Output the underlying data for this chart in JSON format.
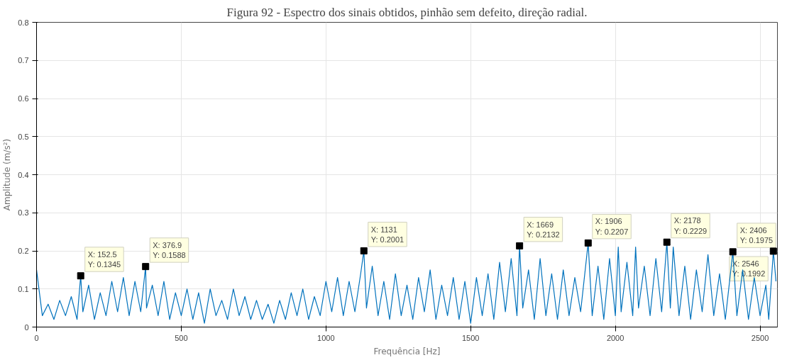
{
  "chart_data": {
    "type": "line",
    "title": "Figura 92 - Espectro dos sinais obtidos, pinhão sem defeito, direção radial.",
    "xlabel": "Frequência [Hz]",
    "ylabel": "Amplitude (m/s²)",
    "xlim": [
      0,
      2560
    ],
    "ylim": [
      0,
      0.8
    ],
    "xticks": [
      0,
      500,
      1000,
      1500,
      2000,
      2500
    ],
    "yticks": [
      0,
      0.1,
      0.2,
      0.3,
      0.4,
      0.5,
      0.6,
      0.7,
      0.8
    ],
    "grid": true,
    "marker": "none",
    "line_style": "solid",
    "series": [
      {
        "color": "#0072bd",
        "x": [
          0,
          20,
          40,
          60,
          80,
          100,
          120,
          140,
          152.5,
          160,
          180,
          200,
          220,
          240,
          260,
          280,
          300,
          320,
          340,
          360,
          376.9,
          380,
          400,
          420,
          440,
          460,
          480,
          500,
          520,
          540,
          560,
          580,
          600,
          620,
          640,
          660,
          680,
          700,
          720,
          740,
          760,
          780,
          800,
          820,
          840,
          860,
          880,
          900,
          920,
          940,
          960,
          980,
          1000,
          1020,
          1040,
          1060,
          1080,
          1100,
          1120,
          1131,
          1140,
          1160,
          1180,
          1200,
          1220,
          1240,
          1260,
          1280,
          1300,
          1320,
          1340,
          1360,
          1380,
          1400,
          1420,
          1440,
          1460,
          1480,
          1500,
          1520,
          1540,
          1560,
          1580,
          1600,
          1620,
          1640,
          1660,
          1669,
          1680,
          1700,
          1720,
          1740,
          1760,
          1780,
          1800,
          1820,
          1840,
          1860,
          1880,
          1906,
          1920,
          1940,
          1960,
          1980,
          2000,
          2010,
          2020,
          2040,
          2060,
          2070,
          2080,
          2100,
          2120,
          2140,
          2160,
          2178,
          2190,
          2200,
          2220,
          2240,
          2260,
          2280,
          2300,
          2320,
          2340,
          2360,
          2380,
          2406,
          2420,
          2440,
          2460,
          2480,
          2500,
          2520,
          2530,
          2546,
          2555
        ],
        "values": [
          0.15,
          0.03,
          0.06,
          0.02,
          0.07,
          0.03,
          0.08,
          0.02,
          0.1345,
          0.04,
          0.11,
          0.02,
          0.09,
          0.03,
          0.12,
          0.04,
          0.13,
          0.03,
          0.12,
          0.04,
          0.1588,
          0.05,
          0.11,
          0.03,
          0.12,
          0.02,
          0.09,
          0.03,
          0.1,
          0.02,
          0.09,
          0.01,
          0.1,
          0.03,
          0.07,
          0.02,
          0.1,
          0.03,
          0.08,
          0.02,
          0.07,
          0.02,
          0.06,
          0.01,
          0.07,
          0.02,
          0.09,
          0.03,
          0.1,
          0.02,
          0.08,
          0.03,
          0.12,
          0.04,
          0.13,
          0.03,
          0.12,
          0.04,
          0.14,
          0.2001,
          0.05,
          0.16,
          0.03,
          0.12,
          0.02,
          0.14,
          0.03,
          0.11,
          0.02,
          0.13,
          0.04,
          0.15,
          0.02,
          0.11,
          0.03,
          0.13,
          0.02,
          0.12,
          0.01,
          0.13,
          0.03,
          0.14,
          0.02,
          0.17,
          0.04,
          0.18,
          0.03,
          0.2132,
          0.05,
          0.15,
          0.02,
          0.18,
          0.03,
          0.14,
          0.02,
          0.15,
          0.03,
          0.13,
          0.04,
          0.2207,
          0.03,
          0.16,
          0.02,
          0.18,
          0.03,
          0.21,
          0.04,
          0.17,
          0.03,
          0.21,
          0.05,
          0.16,
          0.03,
          0.18,
          0.04,
          0.2229,
          0.05,
          0.21,
          0.03,
          0.16,
          0.02,
          0.15,
          0.04,
          0.19,
          0.03,
          0.14,
          0.02,
          0.1975,
          0.03,
          0.15,
          0.02,
          0.13,
          0.03,
          0.11,
          0.02,
          0.1992,
          0.12
        ]
      }
    ],
    "annotations": [
      {
        "text": "X: 152.5\nY: 0.1345",
        "x": 152.5,
        "y": 0.1345
      },
      {
        "text": "X: 376.9\nY: 0.1588",
        "x": 376.9,
        "y": 0.1588
      },
      {
        "text": "X: 1131\nY: 0.2001",
        "x": 1131,
        "y": 0.2001
      },
      {
        "text": "X: 1669\nY: 0.2132",
        "x": 1669,
        "y": 0.2132
      },
      {
        "text": "X: 1906\nY: 0.2207",
        "x": 1906,
        "y": 0.2207
      },
      {
        "text": "X: 2178\nY: 0.2229",
        "x": 2178,
        "y": 0.2229
      },
      {
        "text": "X: 2406\nY: 0.1975",
        "x": 2406,
        "y": 0.1975
      },
      {
        "text": "X: 2546\nY: 0.1992",
        "x": 2546,
        "y": 0.1992
      }
    ]
  }
}
